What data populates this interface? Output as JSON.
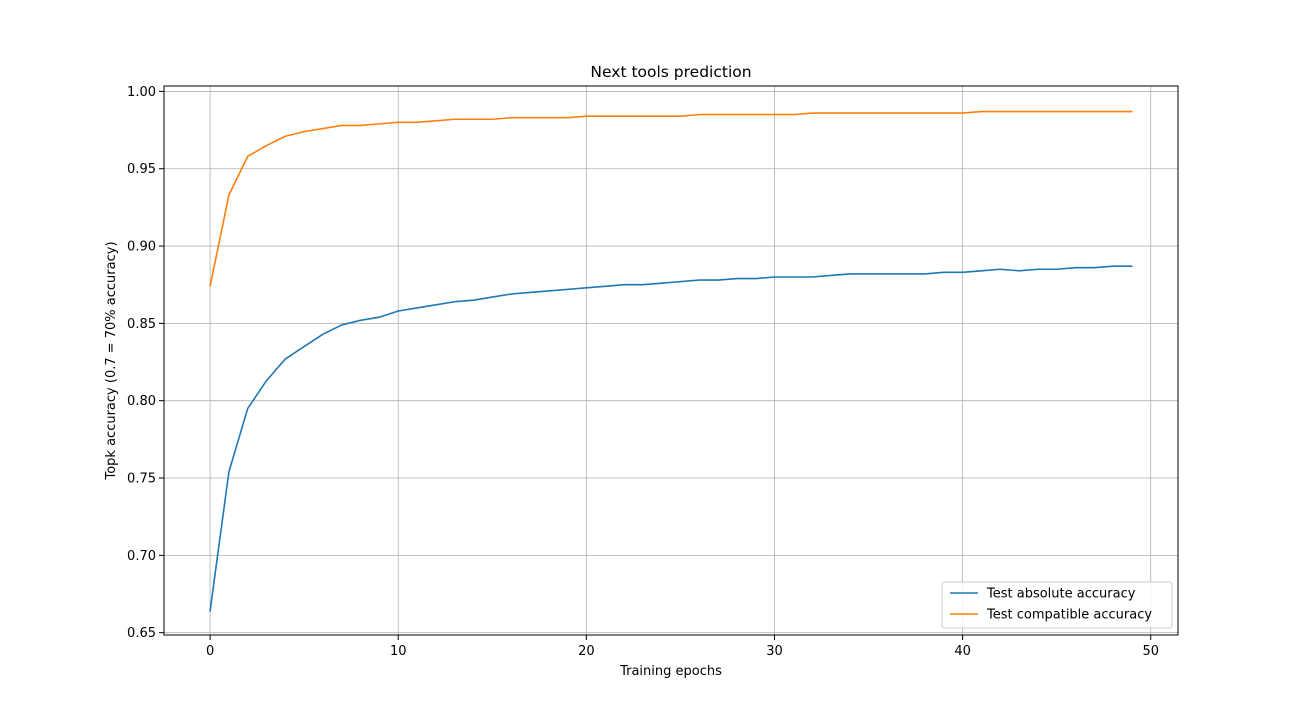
{
  "chart_data": {
    "type": "line",
    "title": "Next tools prediction",
    "xlabel": "Training epochs",
    "ylabel": "Topk accuracy (0.7 = 70% accuracy)",
    "xlim": [
      -2.45,
      51.45
    ],
    "ylim": [
      0.6485,
      1.0035
    ],
    "xticks": [
      0,
      10,
      20,
      30,
      40,
      50
    ],
    "yticks": [
      0.65,
      0.7,
      0.75,
      0.8,
      0.85,
      0.9,
      0.95,
      1.0
    ],
    "xtick_labels": [
      "0",
      "10",
      "20",
      "30",
      "40",
      "50"
    ],
    "ytick_labels": [
      "0.65",
      "0.70",
      "0.75",
      "0.80",
      "0.85",
      "0.90",
      "0.95",
      "1.00"
    ],
    "grid": true,
    "legend_position": "bottom-right",
    "x": [
      0,
      1,
      2,
      3,
      4,
      5,
      6,
      7,
      8,
      9,
      10,
      11,
      12,
      13,
      14,
      15,
      16,
      17,
      18,
      19,
      20,
      21,
      22,
      23,
      24,
      25,
      26,
      27,
      28,
      29,
      30,
      31,
      32,
      33,
      34,
      35,
      36,
      37,
      38,
      39,
      40,
      41,
      42,
      43,
      44,
      45,
      46,
      47,
      48,
      49
    ],
    "series": [
      {
        "name": "Test absolute accuracy",
        "color": "#1f77b4",
        "values": [
          0.664,
          0.754,
          0.795,
          0.813,
          0.827,
          0.835,
          0.843,
          0.849,
          0.852,
          0.854,
          0.858,
          0.86,
          0.862,
          0.864,
          0.865,
          0.867,
          0.869,
          0.87,
          0.871,
          0.872,
          0.873,
          0.874,
          0.875,
          0.875,
          0.876,
          0.877,
          0.878,
          0.878,
          0.879,
          0.879,
          0.88,
          0.88,
          0.88,
          0.881,
          0.882,
          0.882,
          0.882,
          0.882,
          0.882,
          0.883,
          0.883,
          0.884,
          0.885,
          0.884,
          0.885,
          0.885,
          0.886,
          0.886,
          0.887,
          0.887
        ]
      },
      {
        "name": "Test compatible accuracy",
        "color": "#ff7f0e",
        "values": [
          0.874,
          0.933,
          0.958,
          0.965,
          0.971,
          0.974,
          0.976,
          0.978,
          0.978,
          0.979,
          0.98,
          0.98,
          0.981,
          0.982,
          0.982,
          0.982,
          0.983,
          0.983,
          0.983,
          0.983,
          0.984,
          0.984,
          0.984,
          0.984,
          0.984,
          0.984,
          0.985,
          0.985,
          0.985,
          0.985,
          0.985,
          0.985,
          0.986,
          0.986,
          0.986,
          0.986,
          0.986,
          0.986,
          0.986,
          0.986,
          0.986,
          0.987,
          0.987,
          0.987,
          0.987,
          0.987,
          0.987,
          0.987,
          0.987,
          0.987
        ]
      }
    ]
  }
}
